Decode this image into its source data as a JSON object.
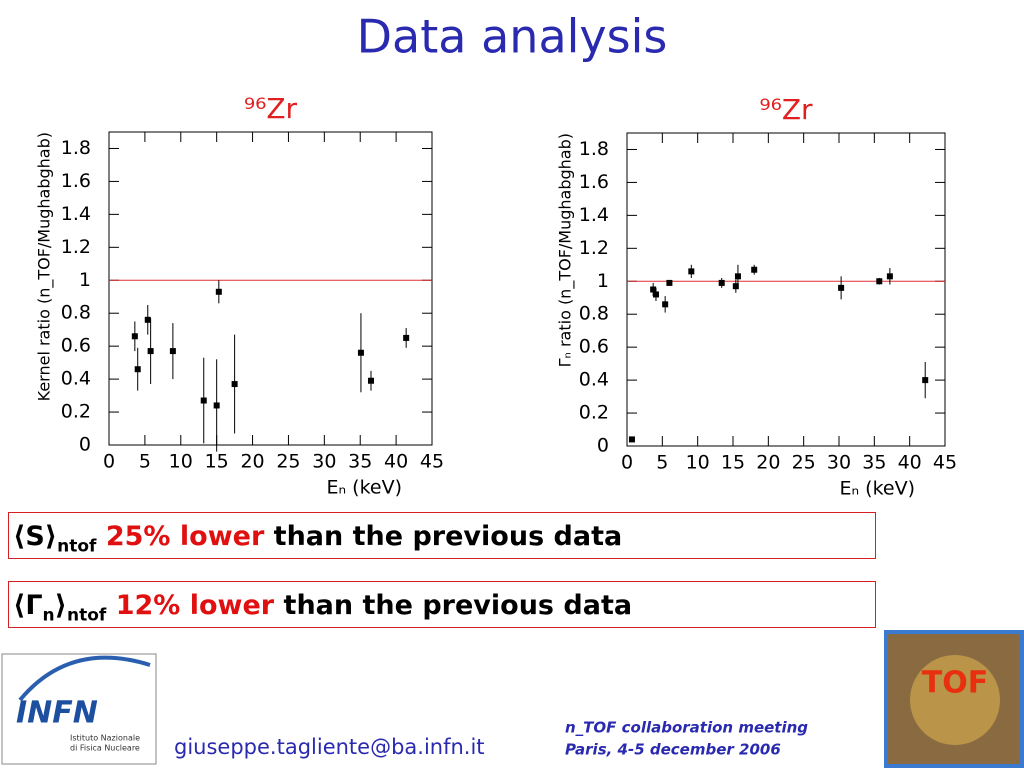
{
  "title": "Data analysis",
  "chart_data": [
    {
      "type": "scatter",
      "title": "⁹⁶Zr",
      "xlabel": "Eₙ (keV)",
      "ylabel": "Kernel ratio (n_TOF/Mughabghab)",
      "xlim": [
        0,
        45
      ],
      "xticks": [
        0,
        5,
        10,
        15,
        20,
        25,
        30,
        35,
        40,
        45
      ],
      "ylim": [
        0,
        1.9
      ],
      "yticks": [
        0,
        0.2,
        0.4,
        0.6,
        0.8,
        1,
        1.2,
        1.4,
        1.6,
        1.8
      ],
      "reference_line": 1,
      "reference_color": "#e03030",
      "series": [
        {
          "color": "#000000",
          "x": [
            3.6,
            4.0,
            5.4,
            5.8,
            8.9,
            13.2,
            15.0,
            15.3,
            17.5,
            35.1,
            36.5,
            41.4
          ],
          "y": [
            0.66,
            0.46,
            0.76,
            0.57,
            0.57,
            0.27,
            0.24,
            0.93,
            0.37,
            0.56,
            0.39,
            0.65
          ],
          "err": [
            0.09,
            0.13,
            0.09,
            0.2,
            0.17,
            0.26,
            0.28,
            0.07,
            0.3,
            0.24,
            0.06,
            0.06
          ]
        }
      ]
    },
    {
      "type": "scatter",
      "title": "⁹⁶Zr",
      "xlabel": "Eₙ (keV)",
      "ylabel": "Γₙ ratio (n_TOF/Mughabghab)",
      "xlim": [
        0,
        45
      ],
      "xticks": [
        0,
        5,
        10,
        15,
        20,
        25,
        30,
        35,
        40,
        45
      ],
      "ylim": [
        0,
        1.9
      ],
      "yticks": [
        0,
        0.2,
        0.4,
        0.6,
        0.8,
        1,
        1.2,
        1.4,
        1.6,
        1.8
      ],
      "reference_line": 1,
      "reference_color": "#e03030",
      "series": [
        {
          "color": "#000000",
          "x": [
            0.7,
            3.7,
            4.1,
            5.4,
            6.0,
            9.1,
            13.4,
            15.4,
            15.7,
            18.0,
            30.3,
            35.7,
            37.2,
            42.2
          ],
          "y": [
            0.04,
            0.95,
            0.92,
            0.86,
            0.99,
            1.06,
            0.99,
            0.97,
            1.03,
            1.07,
            0.96,
            1.0,
            1.03,
            0.4
          ],
          "err": [
            0,
            0.04,
            0.04,
            0.05,
            0,
            0.04,
            0.03,
            0.04,
            0.07,
            0.03,
            0.07,
            0.02,
            0.05,
            0.11
          ]
        }
      ]
    }
  ],
  "boxes": [
    {
      "symbol": "⟨S⟩",
      "subscript": "ntof",
      "highlight": "25% lower",
      "text": "than the previous data"
    },
    {
      "symbol": "⟨Γ",
      "symbol_sub": "n",
      "symbol_end": "⟩",
      "subscript": "ntof",
      "highlight": "12% lower",
      "text": "than the previous data"
    }
  ],
  "footer": {
    "email": "giuseppe.tagliente@ba.infn.it",
    "meeting": "n_TOF collaboration meeting",
    "place": "Paris, 4-5 december 2006",
    "infn": "INFN",
    "infn_line1": "Istituto Nazionale",
    "infn_line2": "di Fisica Nucleare",
    "tof": "TOF"
  }
}
